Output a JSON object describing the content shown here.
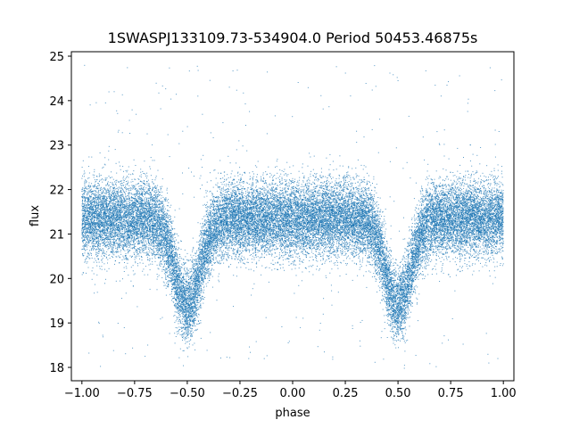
{
  "chart_data": {
    "type": "scatter",
    "title": "1SWASPJ133109.73-534904.0 Period 50453.46875s",
    "xlabel": "phase",
    "ylabel": "flux",
    "xlim": [
      -1.05,
      1.05
    ],
    "ylim": [
      17.7,
      25.1
    ],
    "x_ticks": [
      -1.0,
      -0.75,
      -0.5,
      -0.25,
      0.0,
      0.25,
      0.5,
      0.75,
      1.0
    ],
    "x_tick_labels": [
      "−1.00",
      "−0.75",
      "−0.50",
      "−0.25",
      "0.00",
      "0.25",
      "0.50",
      "0.75",
      "1.00"
    ],
    "y_ticks": [
      18,
      19,
      20,
      21,
      22,
      23,
      24,
      25
    ],
    "y_tick_labels": [
      "18",
      "19",
      "20",
      "21",
      "22",
      "23",
      "24",
      "25"
    ],
    "grid": false,
    "legend": "none",
    "marker_color": "#1f77b4",
    "series": [
      {
        "baseline_flux": 21.35,
        "scatter_sigma": 0.42,
        "phase_range": [
          -1.0,
          1.0
        ],
        "eclipses": [
          {
            "center_phase": -0.5,
            "min_flux": 19.4,
            "half_width": 0.085
          },
          {
            "center_phase": 0.5,
            "min_flux": 19.4,
            "half_width": 0.085
          }
        ],
        "point_count": 30000,
        "outlier_range": [
          18.0,
          24.8
        ]
      }
    ]
  }
}
